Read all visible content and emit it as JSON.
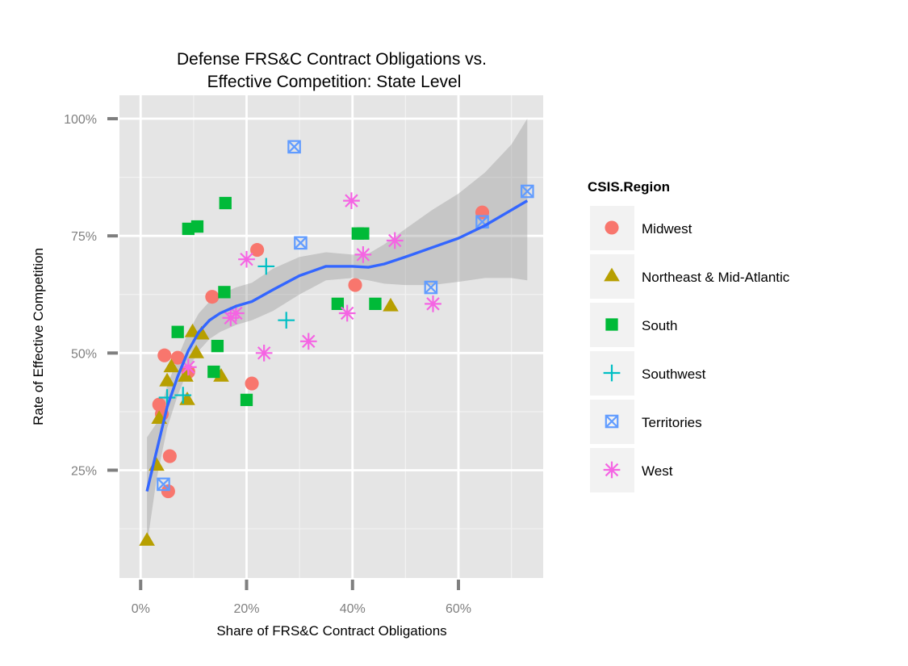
{
  "chart_data": {
    "type": "scatter",
    "title": "Defense FRS&C Contract Obligations vs.\nEffective Competition: State Level",
    "title_lines": [
      "Defense FRS&C Contract Obligations vs.",
      "Effective Competition: State Level"
    ],
    "xlabel": "Share of FRS&C Contract Obligations",
    "ylabel": "Rate of Effective Competition",
    "xlim": [
      -0.04,
      0.76
    ],
    "ylim": [
      0.02,
      1.05
    ],
    "x_ticks": [
      0,
      0.2,
      0.4,
      0.6
    ],
    "x_tick_labels": [
      "0%",
      "20%",
      "40%",
      "60%"
    ],
    "y_ticks": [
      0.25,
      0.5,
      0.75,
      1.0
    ],
    "y_tick_labels": [
      "25%",
      "50%",
      "75%",
      "100%"
    ],
    "grid": true,
    "legend_position": "right",
    "legend_title": "CSIS.Region",
    "series": [
      {
        "name": "Midwest",
        "color": "#F8766D",
        "shape": "circle",
        "x": [
          0.035,
          0.045,
          0.07,
          0.09,
          0.04,
          0.055,
          0.052,
          0.135,
          0.22,
          0.21,
          0.405,
          0.645
        ],
        "y": [
          0.39,
          0.495,
          0.49,
          0.46,
          0.37,
          0.28,
          0.205,
          0.62,
          0.72,
          0.435,
          0.645,
          0.8
        ]
      },
      {
        "name": "Northeast & Mid-Atlantic",
        "color": "#B79F00",
        "shape": "triangle",
        "x": [
          0.012,
          0.03,
          0.035,
          0.05,
          0.058,
          0.085,
          0.088,
          0.098,
          0.105,
          0.115,
          0.152,
          0.472
        ],
        "y": [
          0.1,
          0.26,
          0.36,
          0.44,
          0.47,
          0.45,
          0.4,
          0.545,
          0.5,
          0.54,
          0.45,
          0.6
        ]
      },
      {
        "name": "South",
        "color": "#00BA38",
        "shape": "square",
        "x": [
          0.07,
          0.09,
          0.107,
          0.16,
          0.158,
          0.145,
          0.138,
          0.2,
          0.372,
          0.41,
          0.42,
          0.443
        ],
        "y": [
          0.545,
          0.765,
          0.77,
          0.82,
          0.63,
          0.515,
          0.46,
          0.4,
          0.605,
          0.755,
          0.755,
          0.605
        ]
      },
      {
        "name": "Southwest",
        "color": "#00BFC4",
        "shape": "plus",
        "x": [
          0.05,
          0.08,
          0.237,
          0.275
        ],
        "y": [
          0.405,
          0.41,
          0.685,
          0.57
        ]
      },
      {
        "name": "Territories",
        "color": "#619CFF",
        "shape": "square-x",
        "x": [
          0.043,
          0.29,
          0.302,
          0.548,
          0.645,
          0.73
        ],
        "y": [
          0.22,
          0.94,
          0.735,
          0.64,
          0.78,
          0.845
        ]
      },
      {
        "name": "West",
        "color": "#F564E3",
        "shape": "asterisk",
        "x": [
          0.09,
          0.17,
          0.18,
          0.2,
          0.233,
          0.317,
          0.39,
          0.398,
          0.42,
          0.48,
          0.552
        ],
        "y": [
          0.47,
          0.575,
          0.585,
          0.7,
          0.5,
          0.525,
          0.585,
          0.825,
          0.71,
          0.74,
          0.605
        ]
      }
    ],
    "smooth": {
      "color": "#3366FF",
      "band_color": "#999999",
      "x": [
        0.012,
        0.03,
        0.05,
        0.07,
        0.09,
        0.11,
        0.13,
        0.15,
        0.18,
        0.21,
        0.25,
        0.3,
        0.35,
        0.4,
        0.43,
        0.46,
        0.5,
        0.55,
        0.6,
        0.65,
        0.7,
        0.73
      ],
      "y": [
        0.205,
        0.29,
        0.385,
        0.45,
        0.505,
        0.545,
        0.57,
        0.585,
        0.6,
        0.61,
        0.635,
        0.665,
        0.685,
        0.685,
        0.683,
        0.69,
        0.705,
        0.725,
        0.745,
        0.772,
        0.805,
        0.825
      ],
      "lower": [
        0.09,
        0.23,
        0.34,
        0.41,
        0.465,
        0.505,
        0.53,
        0.545,
        0.56,
        0.57,
        0.59,
        0.625,
        0.655,
        0.66,
        0.655,
        0.648,
        0.645,
        0.645,
        0.652,
        0.66,
        0.66,
        0.655
      ],
      "upper": [
        0.32,
        0.35,
        0.43,
        0.49,
        0.545,
        0.585,
        0.61,
        0.625,
        0.64,
        0.65,
        0.68,
        0.705,
        0.715,
        0.71,
        0.712,
        0.732,
        0.765,
        0.805,
        0.84,
        0.885,
        0.945,
        1.0
      ]
    }
  }
}
